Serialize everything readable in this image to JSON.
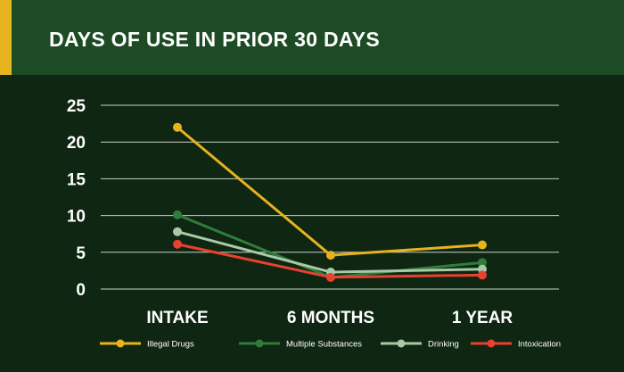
{
  "header": {
    "title": "DAYS OF USE IN PRIOR 30 DAYS"
  },
  "colors": {
    "background": "#0f2612",
    "header": "#1c4b24",
    "accent": "#e6b31e",
    "gridline": "#c9d1c9"
  },
  "chart_data": {
    "type": "line",
    "title": "DAYS OF USE IN PRIOR 30 DAYS",
    "categories": [
      "INTAKE",
      "6 MONTHS",
      "1 YEAR"
    ],
    "ylim": [
      0,
      25
    ],
    "yticks": [
      0,
      5,
      10,
      15,
      20,
      25
    ],
    "grid": true,
    "legend_position": "bottom",
    "series": [
      {
        "name": "Illegal Drugs",
        "color": "#e6b31e",
        "values": [
          22,
          4.6,
          6
        ]
      },
      {
        "name": "Multiple Substances",
        "color": "#2e7d3a",
        "values": [
          10.1,
          1.6,
          3.6
        ]
      },
      {
        "name": "Drinking",
        "color": "#a8c9a8",
        "values": [
          7.8,
          2.3,
          2.7
        ]
      },
      {
        "name": "Intoxication",
        "color": "#e8412f",
        "values": [
          6.1,
          1.6,
          1.9
        ]
      }
    ]
  }
}
